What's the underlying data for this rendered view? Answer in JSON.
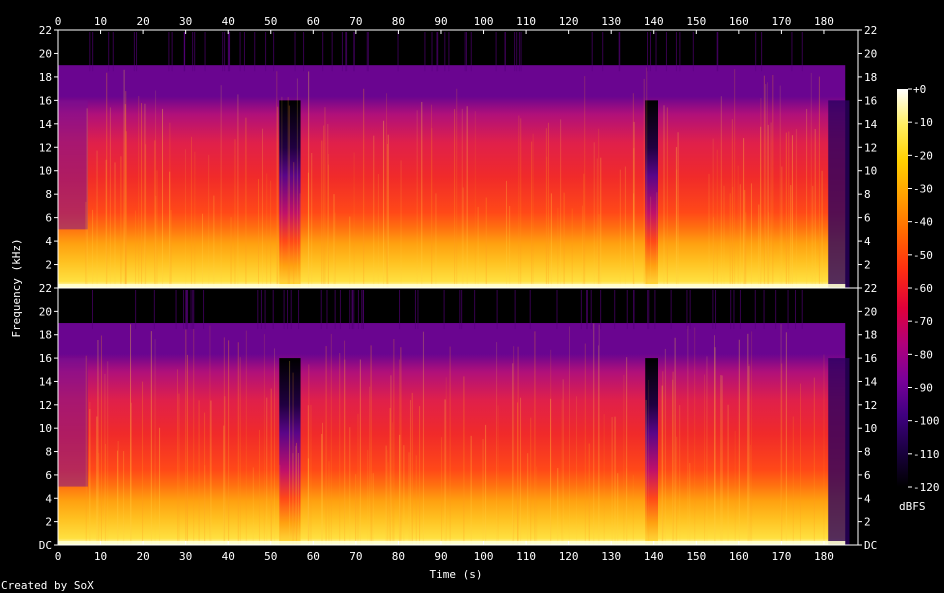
{
  "chart_data": {
    "type": "heatmap",
    "title": "",
    "xlabel": "Time (s)",
    "ylabel": "Frequency (kHz)",
    "xlim": [
      0,
      188
    ],
    "ylim": [
      0,
      22
    ],
    "x_ticks": [
      "0",
      "10",
      "20",
      "30",
      "40",
      "50",
      "60",
      "70",
      "80",
      "90",
      "100",
      "110",
      "120",
      "130",
      "140",
      "150",
      "160",
      "170",
      "180"
    ],
    "y_ticks_top": [
      "2",
      "4",
      "6",
      "8",
      "10",
      "12",
      "14",
      "16",
      "18",
      "20",
      "22"
    ],
    "y_ticks_bottom": [
      "DC",
      "2",
      "4",
      "6",
      "8",
      "10",
      "12",
      "14",
      "16",
      "18",
      "20",
      "22"
    ],
    "channels": [
      {
        "name": "",
        "spectral_ceiling_khz": 19,
        "active_range_s": [
          0,
          185
        ]
      },
      {
        "name": "",
        "spectral_ceiling_khz": 19,
        "active_range_s": [
          0,
          185
        ]
      }
    ],
    "quiet_segments_s": [
      [
        52,
        57
      ],
      [
        138,
        141
      ]
    ],
    "colorbar": {
      "label": "dBFS",
      "range": [
        -120,
        0
      ],
      "ticks": [
        "+0",
        "-10",
        "-20",
        "-30",
        "-40",
        "-50",
        "-60",
        "-70",
        "-80",
        "-90",
        "-100",
        "-110",
        "-120"
      ],
      "colors": [
        "#000000",
        "#1a0040",
        "#3f0080",
        "#7a009a",
        "#b0007a",
        "#e0003a",
        "#ff3010",
        "#ff6a00",
        "#ffa000",
        "#ffd000",
        "#ffef60",
        "#ffffff"
      ]
    },
    "credit": "Created by SoX"
  }
}
